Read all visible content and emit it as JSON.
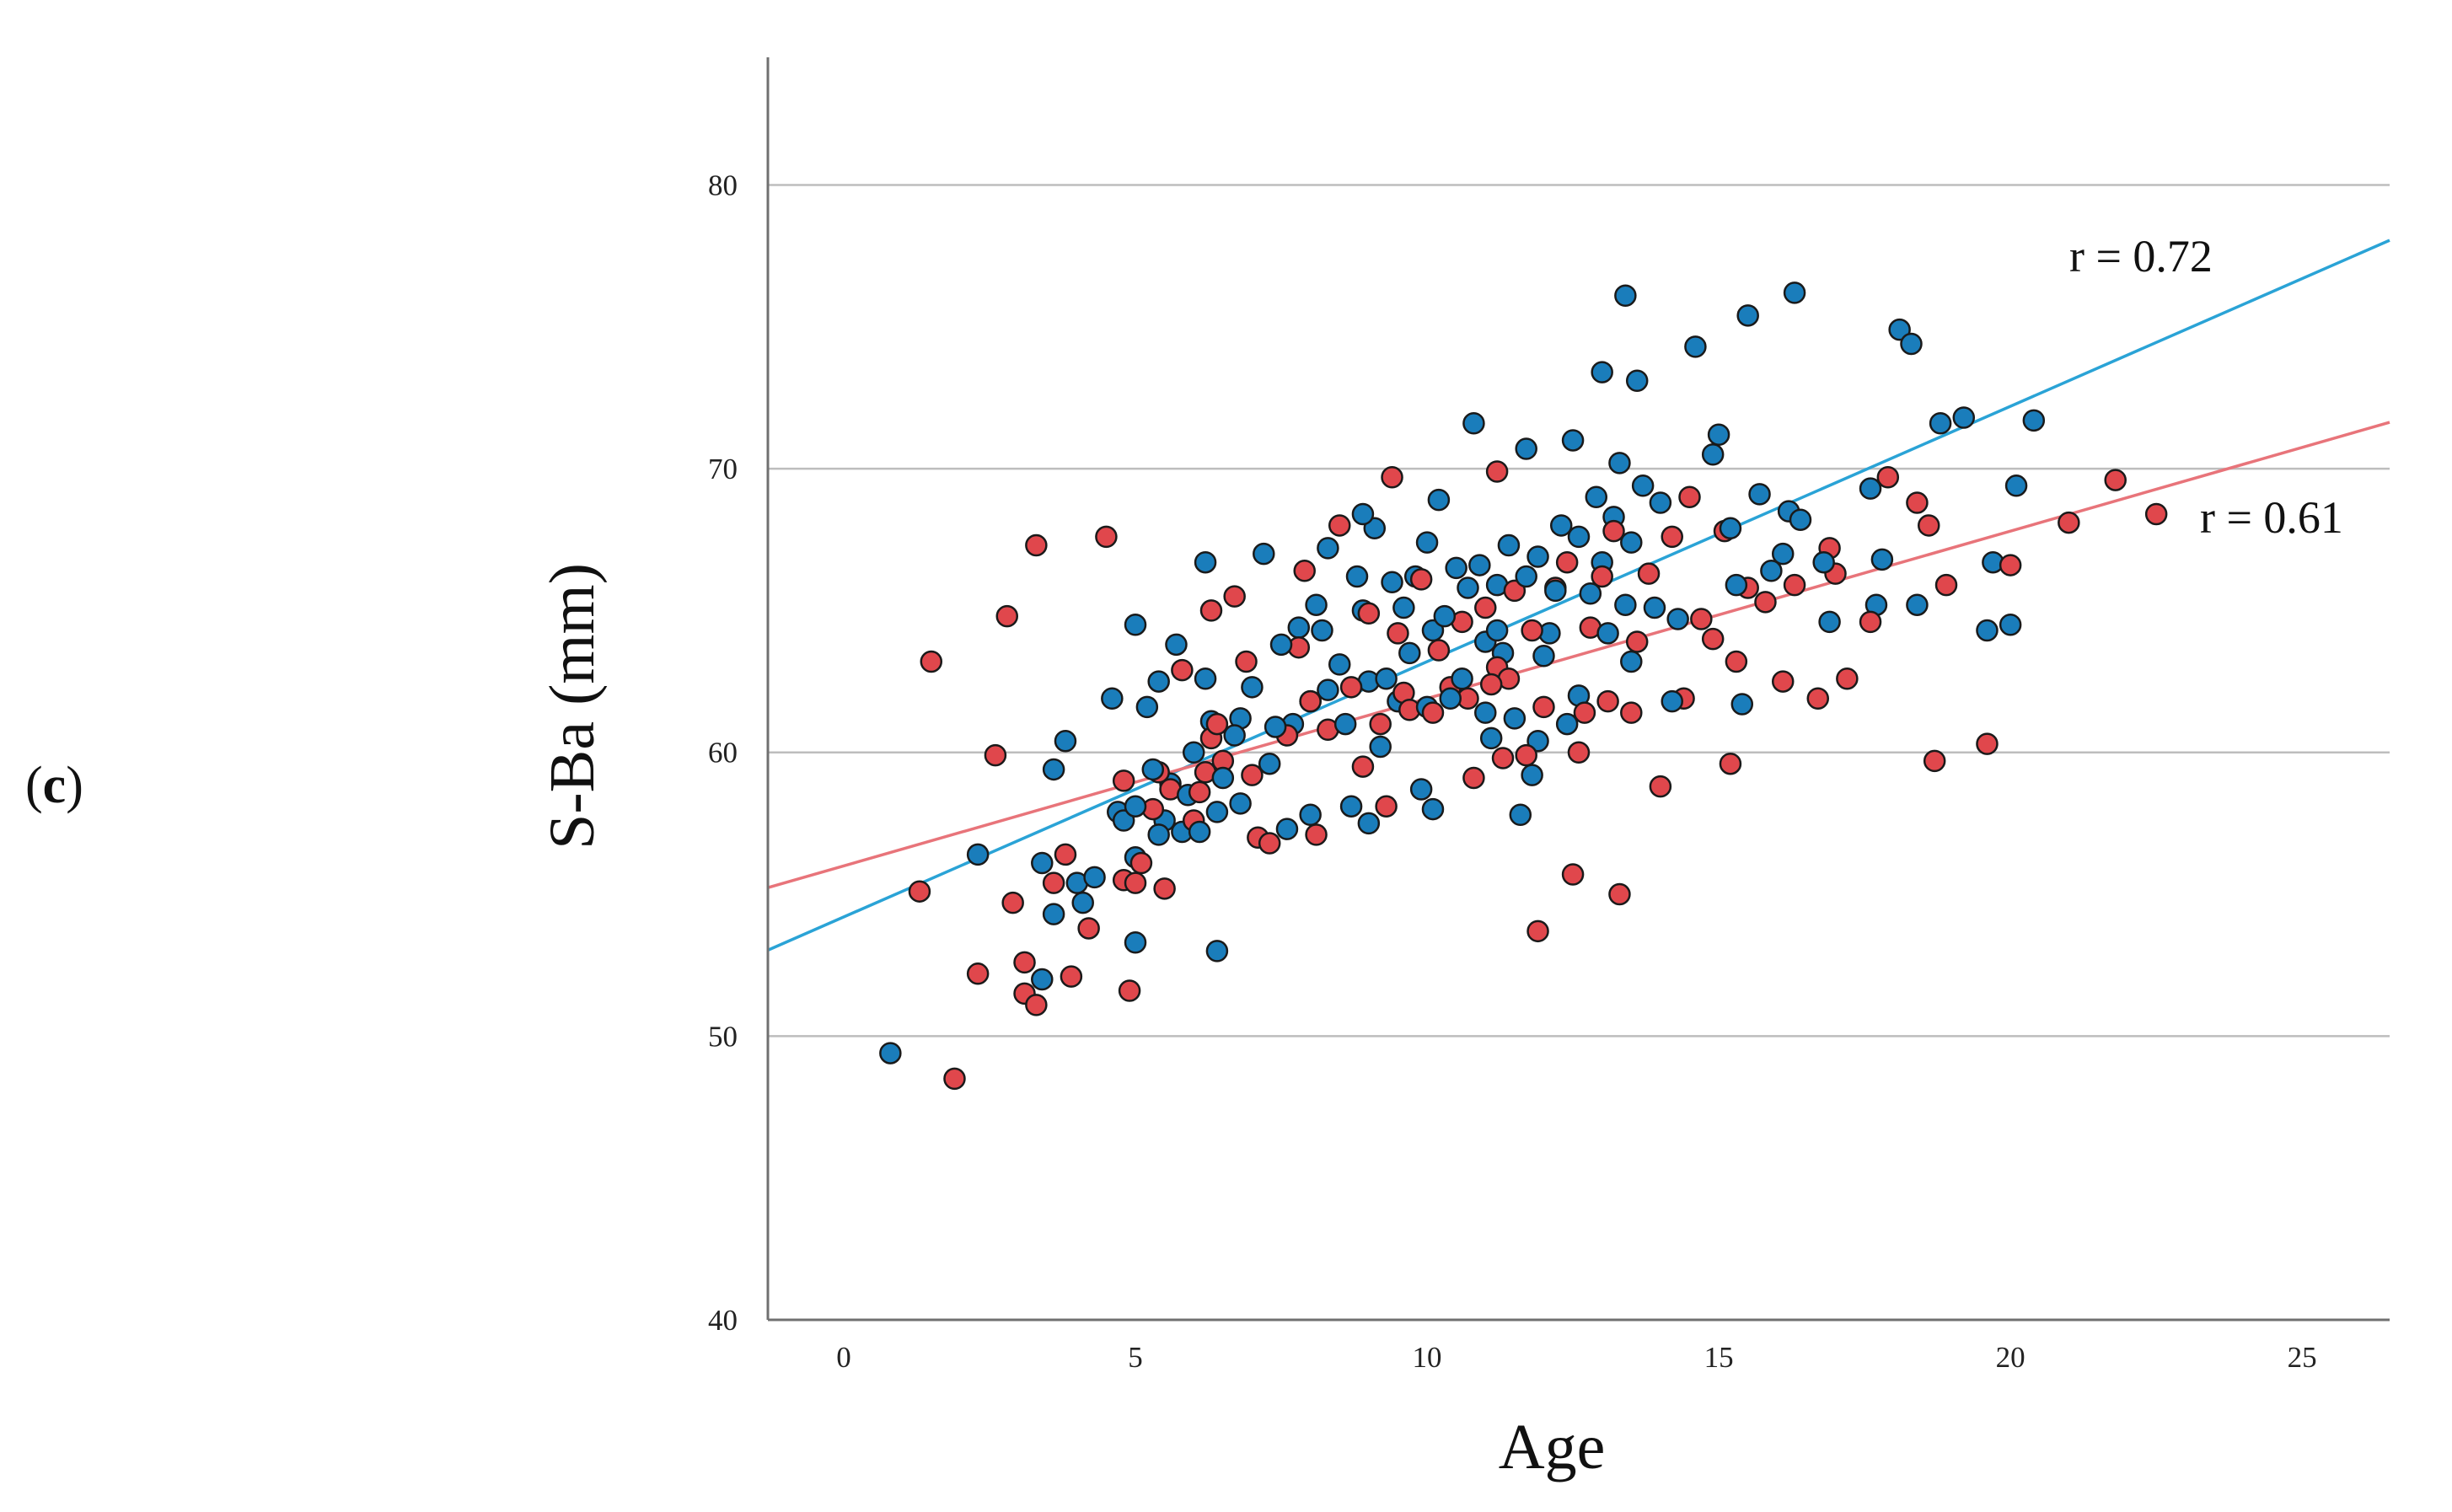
{
  "panel_label_open": "(",
  "panel_label_letter": "c",
  "panel_label_close": ")",
  "chart_data": {
    "type": "scatter",
    "xlabel": "Age",
    "ylabel": "S-Ba (mm)",
    "xlim": [
      -1.3,
      26.5
    ],
    "ylim": [
      40,
      84.5
    ],
    "x_ticks": [
      0,
      5,
      10,
      15,
      20,
      25
    ],
    "y_ticks": [
      40,
      50,
      60,
      70,
      80
    ],
    "grid": "horizontal",
    "colors": {
      "blue": "#1A7DBB",
      "red": "#E0474C",
      "blue_line": "#2AA3D6",
      "red_line": "#E8747A",
      "grid": "#BDBDBD",
      "axis": "#707070"
    },
    "series": [
      {
        "color": "#1A7DBB",
        "fit": {
          "slope": 0.9,
          "intercept": 54.2,
          "r_label": "r = 0.72"
        },
        "points": [
          [
            0.8,
            49.4
          ],
          [
            2.3,
            56.4
          ],
          [
            3.4,
            56.1
          ],
          [
            3.4,
            52.0
          ],
          [
            3.6,
            54.3
          ],
          [
            3.6,
            59.4
          ],
          [
            3.8,
            60.4
          ],
          [
            4.0,
            55.4
          ],
          [
            4.1,
            54.7
          ],
          [
            4.3,
            55.6
          ],
          [
            4.6,
            61.9
          ],
          [
            4.7,
            57.9
          ],
          [
            4.8,
            57.6
          ],
          [
            5.0,
            58.1
          ],
          [
            5.0,
            56.3
          ],
          [
            5.0,
            53.3
          ],
          [
            5.0,
            64.5
          ],
          [
            5.2,
            61.6
          ],
          [
            5.3,
            59.4
          ],
          [
            5.4,
            62.5
          ],
          [
            5.4,
            57.1
          ],
          [
            5.5,
            57.6
          ],
          [
            5.6,
            58.9
          ],
          [
            5.7,
            63.8
          ],
          [
            5.8,
            57.2
          ],
          [
            5.9,
            58.5
          ],
          [
            6.0,
            60.0
          ],
          [
            6.1,
            57.2
          ],
          [
            6.2,
            62.6
          ],
          [
            6.2,
            66.7
          ],
          [
            6.3,
            61.1
          ],
          [
            6.4,
            57.9
          ],
          [
            6.4,
            53.0
          ],
          [
            6.5,
            59.1
          ],
          [
            6.7,
            60.6
          ],
          [
            6.8,
            61.2
          ],
          [
            6.8,
            58.2
          ],
          [
            7.0,
            62.3
          ],
          [
            7.2,
            67.0
          ],
          [
            7.3,
            59.6
          ],
          [
            7.4,
            60.9
          ],
          [
            7.5,
            63.8
          ],
          [
            7.6,
            57.3
          ],
          [
            7.7,
            61.0
          ],
          [
            7.8,
            64.4
          ],
          [
            8.0,
            57.8
          ],
          [
            8.0,
            61.8
          ],
          [
            8.1,
            65.2
          ],
          [
            8.2,
            64.3
          ],
          [
            8.3,
            62.2
          ],
          [
            8.3,
            67.2
          ],
          [
            8.5,
            63.1
          ],
          [
            8.6,
            61.0
          ],
          [
            8.7,
            58.1
          ],
          [
            8.8,
            66.2
          ],
          [
            8.9,
            68.4
          ],
          [
            8.9,
            65.0
          ],
          [
            9.0,
            57.5
          ],
          [
            9.0,
            62.5
          ],
          [
            9.1,
            67.9
          ],
          [
            9.2,
            60.2
          ],
          [
            9.3,
            62.6
          ],
          [
            9.4,
            66.0
          ],
          [
            9.5,
            61.8
          ],
          [
            9.6,
            65.1
          ],
          [
            9.7,
            63.5
          ],
          [
            9.8,
            66.2
          ],
          [
            9.9,
            58.7
          ],
          [
            10.0,
            61.6
          ],
          [
            10.0,
            67.4
          ],
          [
            10.1,
            64.3
          ],
          [
            10.1,
            58.0
          ],
          [
            10.2,
            68.9
          ],
          [
            10.3,
            64.8
          ],
          [
            10.4,
            61.9
          ],
          [
            10.5,
            66.5
          ],
          [
            10.6,
            62.6
          ],
          [
            10.7,
            65.8
          ],
          [
            10.8,
            71.6
          ],
          [
            10.9,
            66.6
          ],
          [
            11.0,
            61.4
          ],
          [
            11.0,
            63.9
          ],
          [
            11.1,
            60.5
          ],
          [
            11.2,
            64.3
          ],
          [
            11.2,
            65.9
          ],
          [
            11.3,
            63.5
          ],
          [
            11.4,
            67.3
          ],
          [
            11.5,
            61.2
          ],
          [
            11.6,
            57.8
          ],
          [
            11.7,
            70.7
          ],
          [
            11.7,
            66.2
          ],
          [
            11.8,
            59.2
          ],
          [
            11.9,
            60.4
          ],
          [
            11.9,
            66.9
          ],
          [
            12.0,
            63.4
          ],
          [
            12.1,
            64.2
          ],
          [
            12.2,
            65.7
          ],
          [
            12.3,
            68.0
          ],
          [
            12.4,
            61.0
          ],
          [
            12.5,
            71.0
          ],
          [
            12.6,
            67.6
          ],
          [
            12.6,
            62.0
          ],
          [
            12.8,
            65.6
          ],
          [
            12.9,
            69.0
          ],
          [
            13.0,
            73.4
          ],
          [
            13.0,
            66.7
          ],
          [
            13.1,
            64.2
          ],
          [
            13.2,
            68.3
          ],
          [
            13.3,
            70.2
          ],
          [
            13.4,
            76.1
          ],
          [
            13.4,
            65.2
          ],
          [
            13.5,
            63.2
          ],
          [
            13.5,
            67.4
          ],
          [
            13.6,
            73.1
          ],
          [
            13.7,
            69.4
          ],
          [
            13.9,
            65.1
          ],
          [
            14.0,
            68.8
          ],
          [
            14.2,
            61.8
          ],
          [
            14.3,
            64.7
          ],
          [
            14.6,
            74.3
          ],
          [
            14.9,
            70.5
          ],
          [
            15.0,
            71.2
          ],
          [
            15.2,
            67.9
          ],
          [
            15.3,
            65.9
          ],
          [
            15.4,
            61.7
          ],
          [
            15.5,
            75.4
          ],
          [
            15.7,
            69.1
          ],
          [
            15.9,
            66.4
          ],
          [
            16.1,
            67.0
          ],
          [
            16.2,
            68.5
          ],
          [
            16.3,
            76.2
          ],
          [
            16.4,
            68.2
          ],
          [
            16.8,
            66.7
          ],
          [
            16.9,
            64.6
          ],
          [
            17.6,
            69.3
          ],
          [
            17.7,
            65.2
          ],
          [
            17.8,
            66.8
          ],
          [
            18.1,
            74.9
          ],
          [
            18.3,
            74.4
          ],
          [
            18.4,
            65.2
          ],
          [
            18.8,
            71.6
          ],
          [
            19.2,
            71.8
          ],
          [
            19.6,
            64.3
          ],
          [
            19.7,
            66.7
          ],
          [
            20.0,
            64.5
          ],
          [
            20.1,
            69.4
          ],
          [
            20.4,
            71.7
          ]
        ]
      },
      {
        "color": "#E0474C",
        "fit": {
          "slope": 0.59,
          "intercept": 56.0,
          "r_label": "r = 0.61"
        },
        "points": [
          [
            1.3,
            55.1
          ],
          [
            1.5,
            63.2
          ],
          [
            1.9,
            48.5
          ],
          [
            2.3,
            52.2
          ],
          [
            2.6,
            59.9
          ],
          [
            2.8,
            64.8
          ],
          [
            2.9,
            54.7
          ],
          [
            3.1,
            52.6
          ],
          [
            3.1,
            51.5
          ],
          [
            3.3,
            51.1
          ],
          [
            3.3,
            67.3
          ],
          [
            3.6,
            55.4
          ],
          [
            3.8,
            56.4
          ],
          [
            3.9,
            52.1
          ],
          [
            4.2,
            53.8
          ],
          [
            4.5,
            67.6
          ],
          [
            4.8,
            59.0
          ],
          [
            4.8,
            55.5
          ],
          [
            4.9,
            51.6
          ],
          [
            5.0,
            55.4
          ],
          [
            5.1,
            56.1
          ],
          [
            5.3,
            58.0
          ],
          [
            5.4,
            59.3
          ],
          [
            5.5,
            55.2
          ],
          [
            5.6,
            58.7
          ],
          [
            5.8,
            62.9
          ],
          [
            6.0,
            57.6
          ],
          [
            6.1,
            58.6
          ],
          [
            6.2,
            59.3
          ],
          [
            6.3,
            65.0
          ],
          [
            6.3,
            60.5
          ],
          [
            6.4,
            61.0
          ],
          [
            6.5,
            59.7
          ],
          [
            6.7,
            65.5
          ],
          [
            6.9,
            63.2
          ],
          [
            7.0,
            59.2
          ],
          [
            7.1,
            57.0
          ],
          [
            7.3,
            56.8
          ],
          [
            7.6,
            60.6
          ],
          [
            7.8,
            63.7
          ],
          [
            7.9,
            66.4
          ],
          [
            8.0,
            61.8
          ],
          [
            8.1,
            57.1
          ],
          [
            8.3,
            60.8
          ],
          [
            8.5,
            68.0
          ],
          [
            8.7,
            62.3
          ],
          [
            8.9,
            59.5
          ],
          [
            9.0,
            64.9
          ],
          [
            9.2,
            61.0
          ],
          [
            9.3,
            58.1
          ],
          [
            9.4,
            69.7
          ],
          [
            9.5,
            64.2
          ],
          [
            9.6,
            62.1
          ],
          [
            9.7,
            61.5
          ],
          [
            9.9,
            66.1
          ],
          [
            10.1,
            61.4
          ],
          [
            10.2,
            63.6
          ],
          [
            10.4,
            62.3
          ],
          [
            10.6,
            64.6
          ],
          [
            10.7,
            61.9
          ],
          [
            10.8,
            59.1
          ],
          [
            11.0,
            65.1
          ],
          [
            11.1,
            62.4
          ],
          [
            11.2,
            69.9
          ],
          [
            11.2,
            63.0
          ],
          [
            11.3,
            59.8
          ],
          [
            11.4,
            62.6
          ],
          [
            11.5,
            65.7
          ],
          [
            11.7,
            59.9
          ],
          [
            11.8,
            64.3
          ],
          [
            11.9,
            53.7
          ],
          [
            12.0,
            61.6
          ],
          [
            12.2,
            65.8
          ],
          [
            12.4,
            66.7
          ],
          [
            12.5,
            55.7
          ],
          [
            12.6,
            60.0
          ],
          [
            12.7,
            61.4
          ],
          [
            12.8,
            64.4
          ],
          [
            13.0,
            66.2
          ],
          [
            13.1,
            61.8
          ],
          [
            13.2,
            67.8
          ],
          [
            13.3,
            55.0
          ],
          [
            13.5,
            61.4
          ],
          [
            13.6,
            63.9
          ],
          [
            13.8,
            66.3
          ],
          [
            14.0,
            58.8
          ],
          [
            14.2,
            67.6
          ],
          [
            14.4,
            61.9
          ],
          [
            14.5,
            69.0
          ],
          [
            14.7,
            64.7
          ],
          [
            14.9,
            64.0
          ],
          [
            15.1,
            67.8
          ],
          [
            15.2,
            59.6
          ],
          [
            15.3,
            63.2
          ],
          [
            15.5,
            65.8
          ],
          [
            15.8,
            65.3
          ],
          [
            16.1,
            62.5
          ],
          [
            16.3,
            65.9
          ],
          [
            16.7,
            61.9
          ],
          [
            16.9,
            67.2
          ],
          [
            17.0,
            66.3
          ],
          [
            17.2,
            62.6
          ],
          [
            17.6,
            64.6
          ],
          [
            17.9,
            69.7
          ],
          [
            18.4,
            68.8
          ],
          [
            18.6,
            68.0
          ],
          [
            18.7,
            59.7
          ],
          [
            18.9,
            65.9
          ],
          [
            19.6,
            60.3
          ],
          [
            20.0,
            66.6
          ],
          [
            21.0,
            68.1
          ],
          [
            21.8,
            69.6
          ],
          [
            22.5,
            68.4
          ]
        ]
      }
    ],
    "annotations": [
      "r = 0.72",
      "r = 0.61"
    ]
  }
}
